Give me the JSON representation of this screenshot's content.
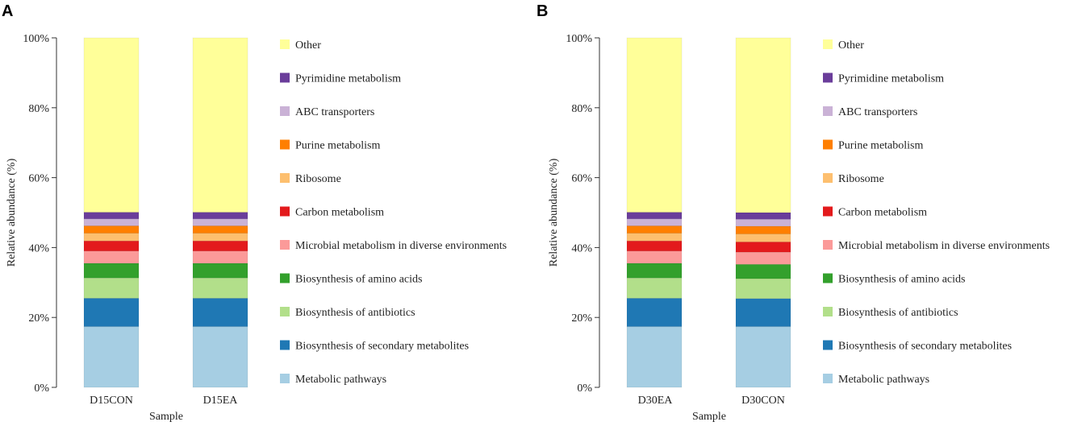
{
  "chart_data": [
    {
      "type": "bar",
      "stacked": true,
      "panel_label": "A",
      "xlabel": "Sample",
      "ylabel": "Relative abundance (%)",
      "ylim": [
        0,
        100
      ],
      "yticks": [
        "0%",
        "20%",
        "40%",
        "60%",
        "80%",
        "100%"
      ],
      "categories": [
        "D15CON",
        "D15EA"
      ],
      "series": [
        {
          "name": "Metabolic pathways",
          "color": "#a6cee3",
          "values": [
            17.4,
            17.4
          ]
        },
        {
          "name": "Biosynthesis of secondary metabolites",
          "color": "#1f78b4",
          "values": [
            8.1,
            8.1
          ]
        },
        {
          "name": "Biosynthesis of antibiotics",
          "color": "#b2df8a",
          "values": [
            5.8,
            5.8
          ]
        },
        {
          "name": "Biosynthesis of amino acids",
          "color": "#33a02c",
          "values": [
            4.2,
            4.2
          ]
        },
        {
          "name": "Microbial metabolism in diverse environments",
          "color": "#fb9a99",
          "values": [
            3.5,
            3.5
          ]
        },
        {
          "name": "Carbon metabolism",
          "color": "#e31a1c",
          "values": [
            2.9,
            2.9
          ]
        },
        {
          "name": "Ribosome",
          "color": "#fdbf6f",
          "values": [
            2.2,
            2.2
          ]
        },
        {
          "name": "Purine metabolism",
          "color": "#ff7f00",
          "values": [
            2.1,
            2.1
          ]
        },
        {
          "name": "ABC transporters",
          "color": "#cab2d6",
          "values": [
            2.0,
            2.0
          ]
        },
        {
          "name": "Pyrimidine metabolism",
          "color": "#6a3d9a",
          "values": [
            1.9,
            1.9
          ]
        },
        {
          "name": "Other",
          "color": "#ffff99",
          "values": [
            49.9,
            49.9
          ]
        }
      ]
    },
    {
      "type": "bar",
      "stacked": true,
      "panel_label": "B",
      "xlabel": "Sample",
      "ylabel": "Relative abundance (%)",
      "ylim": [
        0,
        100
      ],
      "yticks": [
        "0%",
        "20%",
        "40%",
        "60%",
        "80%",
        "100%"
      ],
      "categories": [
        "D30EA",
        "D30CON"
      ],
      "series": [
        {
          "name": "Metabolic pathways",
          "color": "#a6cee3",
          "values": [
            17.4,
            17.4
          ]
        },
        {
          "name": "Biosynthesis of secondary metabolites",
          "color": "#1f78b4",
          "values": [
            8.1,
            8.0
          ]
        },
        {
          "name": "Biosynthesis of antibiotics",
          "color": "#b2df8a",
          "values": [
            5.8,
            5.7
          ]
        },
        {
          "name": "Biosynthesis of amino acids",
          "color": "#33a02c",
          "values": [
            4.2,
            4.1
          ]
        },
        {
          "name": "Microbial metabolism in diverse environments",
          "color": "#fb9a99",
          "values": [
            3.5,
            3.5
          ]
        },
        {
          "name": "Carbon metabolism",
          "color": "#e31a1c",
          "values": [
            2.9,
            2.9
          ]
        },
        {
          "name": "Ribosome",
          "color": "#fdbf6f",
          "values": [
            2.2,
            2.3
          ]
        },
        {
          "name": "Purine metabolism",
          "color": "#ff7f00",
          "values": [
            2.1,
            2.2
          ]
        },
        {
          "name": "ABC transporters",
          "color": "#cab2d6",
          "values": [
            2.0,
            2.0
          ]
        },
        {
          "name": "Pyrimidine metabolism",
          "color": "#6a3d9a",
          "values": [
            1.9,
            1.9
          ]
        },
        {
          "name": "Other",
          "color": "#ffff99",
          "values": [
            49.9,
            50.0
          ]
        }
      ]
    }
  ]
}
